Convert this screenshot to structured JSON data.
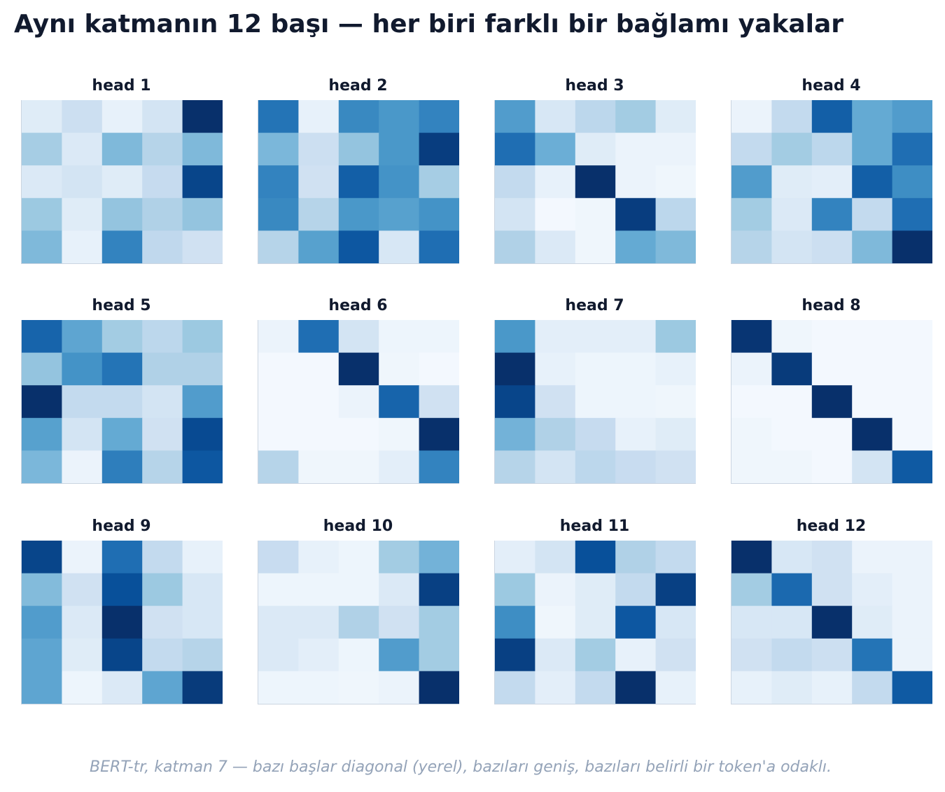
{
  "title": "Aynı katmanın 12 başı — her biri farklı bir bağlamı yakalar",
  "footer": "BERT-tr, katman 7 — bazı başlar diagonal (yerel), bazıları geniş, bazıları belirli bir token'a odaklı.",
  "colorscale": {
    "name": "Blues",
    "low": "#f7fbff",
    "high": "#08306b"
  },
  "chart_data": [
    {
      "type": "heatmap",
      "title": "head 1",
      "matrix": [
        [
          0.12,
          0.22,
          0.08,
          0.18,
          1.0
        ],
        [
          0.35,
          0.14,
          0.45,
          0.3,
          0.45
        ],
        [
          0.14,
          0.18,
          0.12,
          0.25,
          0.92
        ],
        [
          0.38,
          0.12,
          0.4,
          0.32,
          0.4
        ],
        [
          0.45,
          0.08,
          0.68,
          0.27,
          0.2
        ]
      ]
    },
    {
      "type": "heatmap",
      "title": "head 2",
      "matrix": [
        [
          0.74,
          0.08,
          0.66,
          0.6,
          0.68
        ],
        [
          0.46,
          0.22,
          0.4,
          0.6,
          0.95
        ],
        [
          0.68,
          0.2,
          0.82,
          0.62,
          0.35
        ],
        [
          0.66,
          0.3,
          0.6,
          0.56,
          0.62
        ],
        [
          0.3,
          0.56,
          0.85,
          0.16,
          0.76
        ]
      ]
    },
    {
      "type": "heatmap",
      "title": "head 3",
      "matrix": [
        [
          0.58,
          0.16,
          0.28,
          0.36,
          0.12
        ],
        [
          0.76,
          0.5,
          0.12,
          0.06,
          0.06
        ],
        [
          0.26,
          0.08,
          1.0,
          0.06,
          0.04
        ],
        [
          0.18,
          0.02,
          0.04,
          0.95,
          0.28
        ],
        [
          0.32,
          0.14,
          0.04,
          0.52,
          0.45
        ]
      ]
    },
    {
      "type": "heatmap",
      "title": "head 4",
      "matrix": [
        [
          0.06,
          0.26,
          0.82,
          0.52,
          0.58
        ],
        [
          0.26,
          0.36,
          0.28,
          0.52,
          0.76
        ],
        [
          0.58,
          0.12,
          0.1,
          0.82,
          0.64
        ],
        [
          0.36,
          0.14,
          0.68,
          0.26,
          0.76
        ],
        [
          0.3,
          0.18,
          0.22,
          0.45,
          1.0
        ]
      ]
    },
    {
      "type": "heatmap",
      "title": "head 5",
      "matrix": [
        [
          0.8,
          0.54,
          0.36,
          0.28,
          0.38
        ],
        [
          0.4,
          0.62,
          0.74,
          0.32,
          0.32
        ],
        [
          1.0,
          0.26,
          0.26,
          0.18,
          0.58
        ],
        [
          0.56,
          0.18,
          0.52,
          0.2,
          0.9
        ],
        [
          0.46,
          0.06,
          0.7,
          0.3,
          0.85
        ]
      ]
    },
    {
      "type": "heatmap",
      "title": "head 6",
      "matrix": [
        [
          0.06,
          0.76,
          0.18,
          0.05,
          0.05
        ],
        [
          0.02,
          0.02,
          1.0,
          0.04,
          0.02
        ],
        [
          0.02,
          0.02,
          0.06,
          0.8,
          0.2
        ],
        [
          0.02,
          0.02,
          0.02,
          0.04,
          1.0
        ],
        [
          0.3,
          0.04,
          0.04,
          0.1,
          0.68
        ]
      ]
    },
    {
      "type": "heatmap",
      "title": "head 7",
      "matrix": [
        [
          0.6,
          0.1,
          0.1,
          0.1,
          0.38
        ],
        [
          1.0,
          0.08,
          0.05,
          0.05,
          0.08
        ],
        [
          0.92,
          0.2,
          0.05,
          0.05,
          0.04
        ],
        [
          0.48,
          0.32,
          0.25,
          0.08,
          0.12
        ],
        [
          0.3,
          0.18,
          0.28,
          0.24,
          0.2
        ]
      ]
    },
    {
      "type": "heatmap",
      "title": "head 8",
      "matrix": [
        [
          0.98,
          0.04,
          0.02,
          0.02,
          0.02
        ],
        [
          0.06,
          0.96,
          0.02,
          0.02,
          0.02
        ],
        [
          0.02,
          0.02,
          1.0,
          0.02,
          0.02
        ],
        [
          0.04,
          0.02,
          0.02,
          1.0,
          0.02
        ],
        [
          0.04,
          0.04,
          0.02,
          0.18,
          0.84
        ]
      ]
    },
    {
      "type": "heatmap",
      "title": "head 9",
      "matrix": [
        [
          0.92,
          0.06,
          0.76,
          0.26,
          0.08
        ],
        [
          0.44,
          0.2,
          0.88,
          0.38,
          0.16
        ],
        [
          0.58,
          0.14,
          1.0,
          0.2,
          0.16
        ],
        [
          0.54,
          0.12,
          0.92,
          0.26,
          0.3
        ],
        [
          0.54,
          0.05,
          0.14,
          0.54,
          0.96
        ]
      ]
    },
    {
      "type": "heatmap",
      "title": "head 10",
      "matrix": [
        [
          0.24,
          0.08,
          0.05,
          0.36,
          0.48
        ],
        [
          0.05,
          0.05,
          0.05,
          0.14,
          0.94
        ],
        [
          0.14,
          0.14,
          0.32,
          0.2,
          0.36
        ],
        [
          0.14,
          0.1,
          0.05,
          0.58,
          0.36
        ],
        [
          0.05,
          0.05,
          0.04,
          0.06,
          1.0
        ]
      ]
    },
    {
      "type": "heatmap",
      "title": "head 11",
      "matrix": [
        [
          0.1,
          0.18,
          0.88,
          0.32,
          0.26
        ],
        [
          0.38,
          0.06,
          0.12,
          0.26,
          0.94
        ],
        [
          0.64,
          0.04,
          0.12,
          0.85,
          0.16
        ],
        [
          0.94,
          0.14,
          0.36,
          0.08,
          0.2
        ],
        [
          0.26,
          0.1,
          0.26,
          1.0,
          0.08
        ]
      ]
    },
    {
      "type": "heatmap",
      "title": "head 12",
      "matrix": [
        [
          1.0,
          0.16,
          0.2,
          0.06,
          0.06
        ],
        [
          0.36,
          0.78,
          0.2,
          0.1,
          0.06
        ],
        [
          0.16,
          0.16,
          1.0,
          0.12,
          0.06
        ],
        [
          0.2,
          0.26,
          0.22,
          0.74,
          0.06
        ],
        [
          0.08,
          0.12,
          0.08,
          0.26,
          0.84
        ]
      ]
    }
  ]
}
